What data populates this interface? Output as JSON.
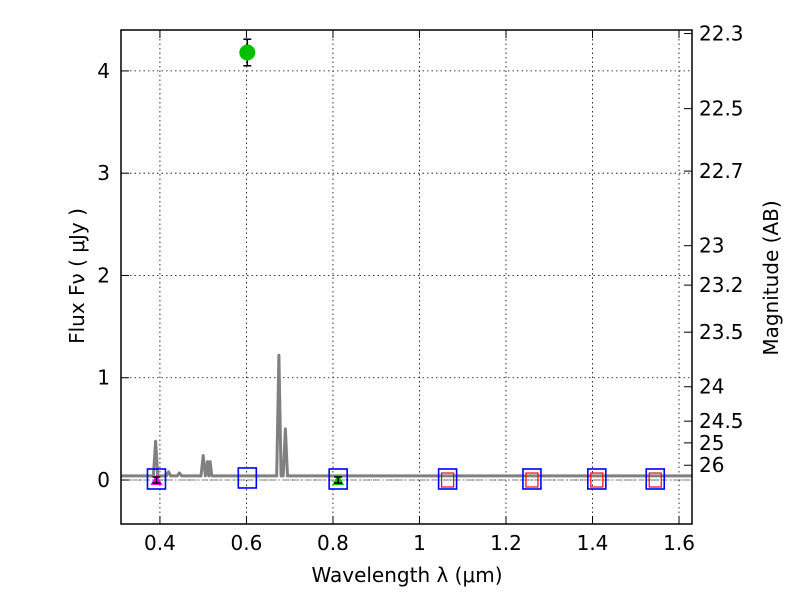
{
  "chart_data": {
    "type": "scatter",
    "xlabel": "Wavelength  λ (μm)",
    "ylabel": "Flux  Fν  ( μJy )",
    "ylabel_right": "Magnitude (AB)",
    "xlim": [
      0.31,
      1.63
    ],
    "ylim": [
      -0.43,
      4.4
    ],
    "grid": true,
    "x_ticks": [
      0.4,
      0.6,
      0.8,
      1.0,
      1.2,
      1.4,
      1.6
    ],
    "x_tick_labels": [
      "0.4",
      "0.6",
      "0.8",
      "1",
      "1.2",
      "1.4",
      "1.6"
    ],
    "y_ticks": [
      0,
      1,
      2,
      3,
      4
    ],
    "y_tick_labels": [
      "0",
      "1",
      "2",
      "3",
      "4"
    ],
    "right_ticks": [
      {
        "label": "22.3",
        "mag": 22.3
      },
      {
        "label": "22.5",
        "mag": 22.5
      },
      {
        "label": "22.7",
        "mag": 22.7
      },
      {
        "label": "23",
        "mag": 23.0
      },
      {
        "label": "23.2",
        "mag": 23.2
      },
      {
        "label": "23.5",
        "mag": 23.5
      },
      {
        "label": "24",
        "mag": 24.0
      },
      {
        "label": "24.5",
        "mag": 24.5
      },
      {
        "label": "25",
        "mag": 25.0
      },
      {
        "label": "26",
        "mag": 26.0
      }
    ],
    "model_spectrum": {
      "color": "#808080",
      "points": [
        [
          0.31,
          0.04
        ],
        [
          0.385,
          0.04
        ],
        [
          0.39,
          0.38
        ],
        [
          0.395,
          0.04
        ],
        [
          0.415,
          0.04
        ],
        [
          0.42,
          0.08
        ],
        [
          0.425,
          0.04
        ],
        [
          0.44,
          0.04
        ],
        [
          0.445,
          0.07
        ],
        [
          0.45,
          0.04
        ],
        [
          0.495,
          0.04
        ],
        [
          0.5,
          0.24
        ],
        [
          0.505,
          0.04
        ],
        [
          0.51,
          0.18
        ],
        [
          0.513,
          0.04
        ],
        [
          0.516,
          0.18
        ],
        [
          0.52,
          0.04
        ],
        [
          0.67,
          0.04
        ],
        [
          0.675,
          1.22
        ],
        [
          0.68,
          0.04
        ],
        [
          0.685,
          0.04
        ],
        [
          0.69,
          0.5
        ],
        [
          0.695,
          0.04
        ],
        [
          0.9,
          0.04
        ],
        [
          1.2,
          0.04
        ],
        [
          1.63,
          0.04
        ]
      ]
    },
    "zero_line": {
      "y": 0,
      "color": "#808080",
      "style": "dashdot"
    },
    "detections": [
      {
        "x": 0.602,
        "y": 4.18,
        "yerr": 0.13,
        "color": "#00c000",
        "marker": "circle"
      }
    ],
    "low_points": [
      {
        "x": 0.392,
        "y": 0.0,
        "yerr": 0.03,
        "color": "#ff00ff",
        "marker": "triangle"
      },
      {
        "x": 0.812,
        "y": 0.0,
        "yerr": 0.03,
        "color": "#00c000",
        "marker": "triangle"
      }
    ],
    "model_band_flux": {
      "color": "#0000ff",
      "marker": "square",
      "points": [
        {
          "x": 0.392,
          "y": 0.01
        },
        {
          "x": 0.602,
          "y": 0.02
        },
        {
          "x": 0.812,
          "y": 0.01
        },
        {
          "x": 1.065,
          "y": 0.01
        },
        {
          "x": 1.26,
          "y": 0.01
        },
        {
          "x": 1.41,
          "y": 0.01
        },
        {
          "x": 1.545,
          "y": 0.01
        }
      ]
    },
    "upper_limits": {
      "color": "#ff0000",
      "marker": "square",
      "points": [
        {
          "x": 1.065,
          "y": 0.0
        },
        {
          "x": 1.26,
          "y": 0.0
        },
        {
          "x": 1.41,
          "y": 0.0
        },
        {
          "x": 1.545,
          "y": 0.0
        }
      ]
    }
  }
}
